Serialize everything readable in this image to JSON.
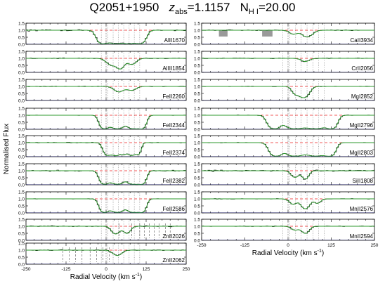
{
  "title": {
    "quasar": "Q2051+1950",
    "z_label": "z",
    "z_sub": "abs",
    "z_value": "=1.1157",
    "n_label": "N",
    "n_sub": "H I",
    "n_value": "=20.00"
  },
  "colors": {
    "model": "#2e9a2e",
    "data": "#000000",
    "continuum": "#ee2222",
    "error": "#3333bb",
    "masked": "#9a9a9a"
  },
  "chart_data": {
    "type": "line",
    "ylabel": "Normalised Flux",
    "xlabel_main": "Radial Velocity (km s",
    "xlabel_exp": "-1",
    "xlabel_close": ")",
    "components_kms": [
      -15,
      5,
      22,
      38,
      55,
      72,
      88,
      105
    ],
    "columns": [
      {
        "xlim": [
          -250,
          250
        ],
        "xticks": [
          -250,
          -125,
          0,
          125,
          250
        ],
        "xtick_labels": [
          "-250",
          "-125",
          "0",
          "125",
          "250"
        ],
        "panels": [
          {
            "name": "AlII1670",
            "absorption": [
              {
                "v": -10,
                "b": 18,
                "d": 1.0
              },
              {
                "v": 30,
                "b": 22,
                "d": 1.0
              },
              {
                "v": 70,
                "b": 20,
                "d": 1.0
              },
              {
                "v": 105,
                "b": 18,
                "d": 0.97
              }
            ],
            "noise": 0.06,
            "min_flux": 0.05
          },
          {
            "name": "AlIII1854",
            "absorption": [
              {
                "v": 20,
                "b": 22,
                "d": 0.22
              },
              {
                "v": 45,
                "b": 14,
                "d": 0.38
              },
              {
                "v": 80,
                "b": 18,
                "d": 0.18
              }
            ],
            "noise": 0.035
          },
          {
            "name": "FeII2260",
            "absorption": [
              {
                "v": 40,
                "b": 20,
                "d": 0.15
              },
              {
                "v": 80,
                "b": 18,
                "d": 0.1
              }
            ],
            "noise": 0.03
          },
          {
            "name": "FeII2344",
            "absorption": [
              {
                "v": -5,
                "b": 15,
                "d": 1.0
              },
              {
                "v": 35,
                "b": 22,
                "d": 1.0
              },
              {
                "v": 85,
                "b": 20,
                "d": 1.0
              },
              {
                "v": 110,
                "b": 14,
                "d": 0.95
              }
            ],
            "noise": 0.02,
            "min_flux": 0.05
          },
          {
            "name": "FeII2374",
            "absorption": [
              {
                "v": 5,
                "b": 14,
                "d": 0.75
              },
              {
                "v": 30,
                "b": 13,
                "d": 0.8
              },
              {
                "v": 55,
                "b": 14,
                "d": 0.6
              },
              {
                "v": 80,
                "b": 12,
                "d": 0.75
              },
              {
                "v": 100,
                "b": 10,
                "d": 0.55
              }
            ],
            "noise": 0.03,
            "min_flux": 0.05
          },
          {
            "name": "FeII2382",
            "absorption": [
              {
                "v": -5,
                "b": 15,
                "d": 1.0
              },
              {
                "v": 35,
                "b": 22,
                "d": 1.0
              },
              {
                "v": 85,
                "b": 20,
                "d": 1.0
              },
              {
                "v": 110,
                "b": 14,
                "d": 0.95
              }
            ],
            "noise": 0.05,
            "min_flux": 0.05
          },
          {
            "name": "FeII2586",
            "absorption": [
              {
                "v": -5,
                "b": 15,
                "d": 1.0
              },
              {
                "v": 35,
                "b": 22,
                "d": 1.0
              },
              {
                "v": 85,
                "b": 20,
                "d": 1.0
              },
              {
                "v": 110,
                "b": 14,
                "d": 0.95
              }
            ],
            "noise": 0.02,
            "min_flux": 0.05
          },
          {
            "name": "ZnII2026",
            "absorption": [
              {
                "v": 30,
                "b": 16,
                "d": 0.25
              },
              {
                "v": 65,
                "b": 14,
                "d": 0.22
              }
            ],
            "noise": 0.04,
            "extra_ticks": [
              40,
              80,
              105,
              120,
              135,
              150,
              165,
              185,
              200
            ]
          },
          {
            "name": "ZnII2062",
            "absorption": [
              {
                "v": 35,
                "b": 18,
                "d": 0.15
              }
            ],
            "noise": 0.04,
            "extra_ticks": [
              -135,
              -115,
              -95,
              -75,
              -50,
              -30,
              -10,
              10
            ]
          }
        ]
      },
      {
        "xlim": [
          -250,
          250
        ],
        "xticks": [
          -250,
          -125,
          0,
          125,
          250
        ],
        "xtick_labels": [
          "-250",
          "-125",
          "0",
          "125",
          "250"
        ],
        "panels": [
          {
            "name": "CaII3934",
            "absorption": [
              {
                "v": 55,
                "b": 20,
                "d": 0.2
              },
              {
                "v": 15,
                "b": 15,
                "d": 0.1
              }
            ],
            "noise": 0.04,
            "masked": [
              [
                -200,
                -175
              ],
              [
                -75,
                -45
              ]
            ]
          },
          {
            "name": "CrII2056",
            "absorption": [
              {
                "v": 50,
                "b": 16,
                "d": 0.08
              }
            ],
            "noise": 0.04
          },
          {
            "name": "MgI2852",
            "absorption": [
              {
                "v": 45,
                "b": 18,
                "d": 0.5
              },
              {
                "v": 20,
                "b": 12,
                "d": 0.2
              }
            ],
            "noise": 0.025
          },
          {
            "name": "MgII2796",
            "absorption": [
              {
                "v": -40,
                "b": 18,
                "d": 1.0
              },
              {
                "v": 20,
                "b": 30,
                "d": 1.0
              },
              {
                "v": 80,
                "b": 30,
                "d": 1.0
              },
              {
                "v": 125,
                "b": 16,
                "d": 0.97
              }
            ],
            "noise": 0.02,
            "min_flux": 0.03
          },
          {
            "name": "MgII2803",
            "absorption": [
              {
                "v": -35,
                "b": 18,
                "d": 1.0
              },
              {
                "v": 20,
                "b": 28,
                "d": 1.0
              },
              {
                "v": 80,
                "b": 28,
                "d": 1.0
              },
              {
                "v": 120,
                "b": 16,
                "d": 0.97
              }
            ],
            "noise": 0.02,
            "min_flux": 0.03
          },
          {
            "name": "SiII1808",
            "absorption": [
              {
                "v": 20,
                "b": 14,
                "d": 0.2
              },
              {
                "v": 50,
                "b": 12,
                "d": 0.28
              }
            ],
            "noise": 0.06
          },
          {
            "name": "MnII2576",
            "absorption": [
              {
                "v": 15,
                "b": 14,
                "d": 0.15
              },
              {
                "v": 50,
                "b": 15,
                "d": 0.38
              },
              {
                "v": 85,
                "b": 12,
                "d": 0.12
              }
            ],
            "noise": 0.03
          },
          {
            "name": "MnII2594",
            "absorption": [
              {
                "v": 20,
                "b": 14,
                "d": 0.1
              },
              {
                "v": 50,
                "b": 14,
                "d": 0.22
              }
            ],
            "noise": 0.03
          }
        ]
      }
    ],
    "ytick_labels": [
      "0.0",
      "0.5",
      "1.0",
      "1.5"
    ],
    "ylim": [
      0,
      1.5
    ]
  }
}
